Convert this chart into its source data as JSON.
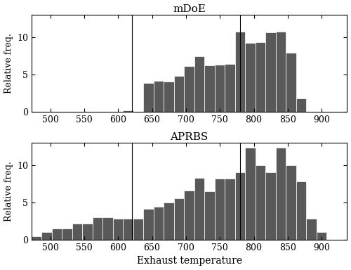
{
  "title_top": "mDoE",
  "title_bottom": "APRBS",
  "xlabel": "Exhaust temperature",
  "ylabel": "Relative freq.",
  "bin_width": 15,
  "bin_start": 472.5,
  "num_bins": 31,
  "mdoe_heights": [
    0,
    0,
    0,
    0,
    0,
    0,
    0,
    0,
    0,
    0.15,
    0,
    3.8,
    4.1,
    4.0,
    4.8,
    6.1,
    7.4,
    6.2,
    6.3,
    6.4,
    10.7,
    9.2,
    9.3,
    10.6,
    10.7,
    7.9,
    1.8,
    0,
    0,
    0,
    0
  ],
  "aprbs_heights": [
    0.5,
    1.0,
    1.5,
    1.5,
    2.2,
    2.2,
    3.0,
    3.0,
    2.8,
    2.8,
    2.8,
    4.1,
    4.4,
    5.0,
    5.6,
    6.6,
    8.3,
    6.5,
    8.2,
    8.2,
    9.0,
    12.3,
    10.0,
    9.0,
    12.3,
    10.0,
    7.8,
    2.8,
    1.0,
    0,
    0
  ],
  "vline_min": 620,
  "vline_max": 780,
  "bar_color": "#595959",
  "bar_edgecolor": "white",
  "xlim": [
    472.5,
    937.5
  ],
  "xticks": [
    500,
    550,
    600,
    650,
    700,
    750,
    800,
    850,
    900
  ],
  "ylim": [
    0,
    13
  ],
  "yticks": [
    0,
    5,
    10
  ],
  "figsize": [
    5.0,
    3.84
  ],
  "dpi": 100,
  "background_color": "#ffffff",
  "linewidth_vline": 0.8,
  "bar_linewidth": 0.5
}
